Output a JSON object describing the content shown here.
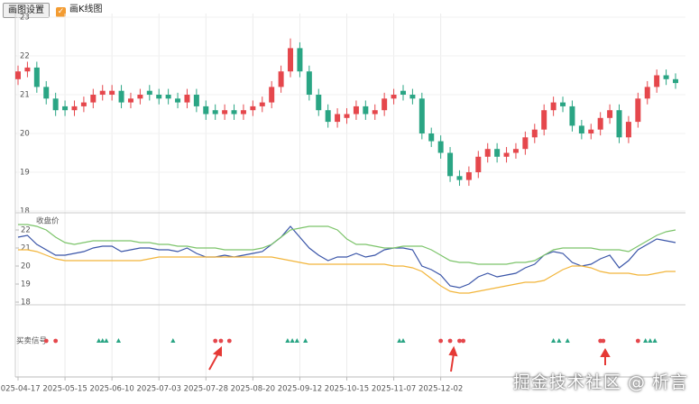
{
  "toolbar": {
    "button": "画图设置",
    "checkbox_label": "画K线图"
  },
  "watermark": "掘金技术社区 @ 析言",
  "chart_data": {
    "type": "candlestick",
    "up_color": "#e5474c",
    "down_color": "#2aa584",
    "xlim": [
      0,
      70
    ],
    "xticks": [
      {
        "value": 0,
        "label": "2025-04-17"
      },
      {
        "value": 5,
        "label": "2025-05-15"
      },
      {
        "value": 10,
        "label": "2025-06-10"
      },
      {
        "value": 15,
        "label": "2025-07-03"
      },
      {
        "value": 20,
        "label": "2025-07-28"
      },
      {
        "value": 25,
        "label": "2025-08-20"
      },
      {
        "value": 30,
        "label": "2025-09-12"
      },
      {
        "value": 35,
        "label": "2025-10-15"
      },
      {
        "value": 40,
        "label": "2025-11-07"
      },
      {
        "value": 45,
        "label": "2025-12-02"
      }
    ],
    "ylim": [
      18,
      23
    ],
    "yticks": [
      18,
      19,
      20,
      21,
      22,
      23
    ],
    "grid": true,
    "open": [
      21.4,
      21.6,
      21.7,
      21.2,
      20.9,
      20.7,
      20.6,
      20.7,
      20.8,
      21.0,
      21.0,
      21.1,
      20.8,
      20.9,
      21.1,
      21.0,
      21.0,
      20.9,
      20.8,
      21.0,
      20.7,
      20.6,
      20.5,
      20.6,
      20.5,
      20.6,
      20.7,
      20.8,
      21.2,
      21.6,
      22.2,
      21.6,
      21.0,
      20.6,
      20.3,
      20.4,
      20.5,
      20.7,
      20.5,
      20.6,
      20.9,
      21.1,
      21.0,
      20.9,
      20.0,
      19.8,
      19.5,
      18.9,
      18.8,
      19.0,
      19.4,
      19.6,
      19.4,
      19.5,
      19.6,
      19.9,
      20.1,
      20.6,
      20.8,
      20.7,
      20.2,
      20.0,
      20.1,
      20.4,
      20.6,
      19.9,
      20.3,
      20.9,
      21.2,
      21.5,
      21.4
    ],
    "high": [
      21.75,
      21.85,
      21.85,
      21.35,
      21.05,
      20.85,
      20.85,
      20.95,
      21.15,
      21.25,
      21.25,
      21.25,
      21.05,
      21.15,
      21.25,
      21.15,
      21.15,
      21.05,
      21.15,
      21.15,
      20.85,
      20.75,
      20.75,
      20.75,
      20.75,
      20.85,
      20.95,
      21.35,
      21.75,
      22.45,
      22.35,
      21.75,
      21.15,
      20.75,
      20.65,
      20.65,
      20.85,
      20.85,
      20.75,
      21.05,
      21.15,
      21.25,
      21.15,
      21.05,
      20.15,
      19.95,
      19.65,
      19.05,
      19.15,
      19.55,
      19.75,
      19.75,
      19.65,
      19.75,
      20.05,
      20.25,
      20.75,
      20.95,
      20.95,
      20.85,
      20.35,
      20.25,
      20.55,
      20.75,
      20.75,
      20.45,
      21.05,
      21.35,
      21.65,
      21.65,
      21.55
    ],
    "low": [
      21.25,
      21.45,
      21.05,
      20.75,
      20.45,
      20.45,
      20.45,
      20.55,
      20.65,
      20.85,
      20.85,
      20.65,
      20.65,
      20.75,
      20.85,
      20.75,
      20.75,
      20.65,
      20.65,
      20.55,
      20.35,
      20.35,
      20.35,
      20.35,
      20.35,
      20.45,
      20.55,
      20.65,
      21.05,
      21.45,
      21.45,
      20.85,
      20.45,
      20.15,
      20.15,
      20.25,
      20.35,
      20.35,
      20.35,
      20.45,
      20.75,
      20.85,
      20.75,
      19.85,
      19.65,
      19.35,
      18.75,
      18.65,
      18.65,
      18.85,
      19.25,
      19.25,
      19.25,
      19.35,
      19.45,
      19.75,
      19.95,
      20.45,
      20.55,
      20.05,
      19.85,
      19.85,
      19.95,
      20.25,
      19.75,
      19.75,
      20.15,
      20.75,
      21.05,
      21.25,
      21.15
    ],
    "close": [
      21.6,
      21.7,
      21.2,
      20.9,
      20.6,
      20.6,
      20.7,
      20.8,
      21.0,
      21.1,
      21.1,
      20.8,
      20.9,
      21.0,
      21.0,
      20.9,
      20.9,
      20.8,
      21.0,
      20.7,
      20.5,
      20.5,
      20.6,
      20.5,
      20.6,
      20.7,
      20.8,
      21.2,
      21.6,
      22.2,
      21.6,
      21.0,
      20.6,
      20.3,
      20.5,
      20.5,
      20.7,
      20.5,
      20.6,
      20.9,
      21.0,
      21.0,
      20.9,
      20.0,
      19.8,
      19.5,
      18.9,
      18.8,
      19.0,
      19.4,
      19.6,
      19.4,
      19.5,
      19.6,
      19.9,
      20.1,
      20.6,
      20.8,
      20.7,
      20.2,
      20.0,
      20.1,
      20.4,
      20.6,
      19.9,
      20.3,
      20.9,
      21.2,
      21.5,
      21.4,
      21.3
    ],
    "line_panel": {
      "type": "line",
      "ylim": [
        18,
        22.5
      ],
      "yticks": [
        18,
        19,
        20,
        21,
        22
      ],
      "series": [
        {
          "name": "收盘价",
          "color": "#3a55a8",
          "values": [
            21.6,
            21.7,
            21.2,
            20.9,
            20.6,
            20.6,
            20.7,
            20.8,
            21.0,
            21.1,
            21.1,
            20.8,
            20.9,
            21.0,
            21.0,
            20.9,
            20.9,
            20.8,
            21.0,
            20.7,
            20.5,
            20.5,
            20.6,
            20.5,
            20.6,
            20.7,
            20.8,
            21.2,
            21.6,
            22.2,
            21.6,
            21.0,
            20.6,
            20.3,
            20.5,
            20.5,
            20.7,
            20.5,
            20.6,
            20.9,
            21.0,
            21.0,
            20.9,
            20.0,
            19.8,
            19.5,
            18.9,
            18.8,
            19.0,
            19.4,
            19.6,
            19.4,
            19.5,
            19.6,
            19.9,
            20.1,
            20.6,
            20.8,
            20.7,
            20.2,
            20.0,
            20.1,
            20.4,
            20.6,
            19.9,
            20.3,
            20.9,
            21.2,
            21.5,
            21.4,
            21.3
          ]
        },
        {
          "color": "#7cc46a",
          "values": [
            22.3,
            22.3,
            22.2,
            22.0,
            21.6,
            21.3,
            21.2,
            21.3,
            21.4,
            21.4,
            21.4,
            21.4,
            21.4,
            21.3,
            21.3,
            21.2,
            21.2,
            21.1,
            21.1,
            21.0,
            21.0,
            21.0,
            20.9,
            20.9,
            20.9,
            20.9,
            21.0,
            21.2,
            21.6,
            22.0,
            22.1,
            22.2,
            22.2,
            22.2,
            22.0,
            21.5,
            21.2,
            21.2,
            21.1,
            21.0,
            21.0,
            21.1,
            21.1,
            21.1,
            20.9,
            20.6,
            20.3,
            20.2,
            20.2,
            20.1,
            20.1,
            20.1,
            20.1,
            20.2,
            20.2,
            20.3,
            20.6,
            20.9,
            21.0,
            21.0,
            21.0,
            21.0,
            20.9,
            20.9,
            20.9,
            20.8,
            21.1,
            21.4,
            21.7,
            21.9,
            22.0
          ]
        },
        {
          "color": "#f2b53a",
          "values": [
            20.9,
            20.9,
            20.8,
            20.6,
            20.4,
            20.3,
            20.3,
            20.3,
            20.3,
            20.3,
            20.3,
            20.3,
            20.3,
            20.3,
            20.4,
            20.5,
            20.5,
            20.5,
            20.5,
            20.5,
            20.5,
            20.5,
            20.5,
            20.5,
            20.5,
            20.5,
            20.5,
            20.5,
            20.4,
            20.3,
            20.2,
            20.1,
            20.1,
            20.1,
            20.1,
            20.1,
            20.1,
            20.1,
            20.1,
            20.1,
            20.0,
            20.0,
            19.9,
            19.7,
            19.3,
            18.9,
            18.6,
            18.5,
            18.5,
            18.6,
            18.7,
            18.8,
            18.9,
            19.0,
            19.1,
            19.1,
            19.2,
            19.5,
            19.8,
            20.0,
            20.0,
            19.9,
            19.7,
            19.6,
            19.6,
            19.6,
            19.5,
            19.5,
            19.6,
            19.7,
            19.7
          ]
        }
      ]
    },
    "signals": {
      "label": "买卖信号",
      "red_dots": {
        "color": "#e5474c",
        "x": [
          3,
          4,
          21,
          21.6,
          22.5,
          45,
          46,
          47,
          47.4,
          62,
          62.3,
          66
        ]
      },
      "green_triangles": {
        "color": "#2aa584",
        "x": [
          8.6,
          9,
          9.4,
          10.7,
          16.5,
          28.7,
          29.2,
          29.7,
          30.6,
          40.6,
          41,
          57,
          57.6,
          58.5,
          66.8,
          67.3,
          67.8
        ]
      }
    }
  }
}
